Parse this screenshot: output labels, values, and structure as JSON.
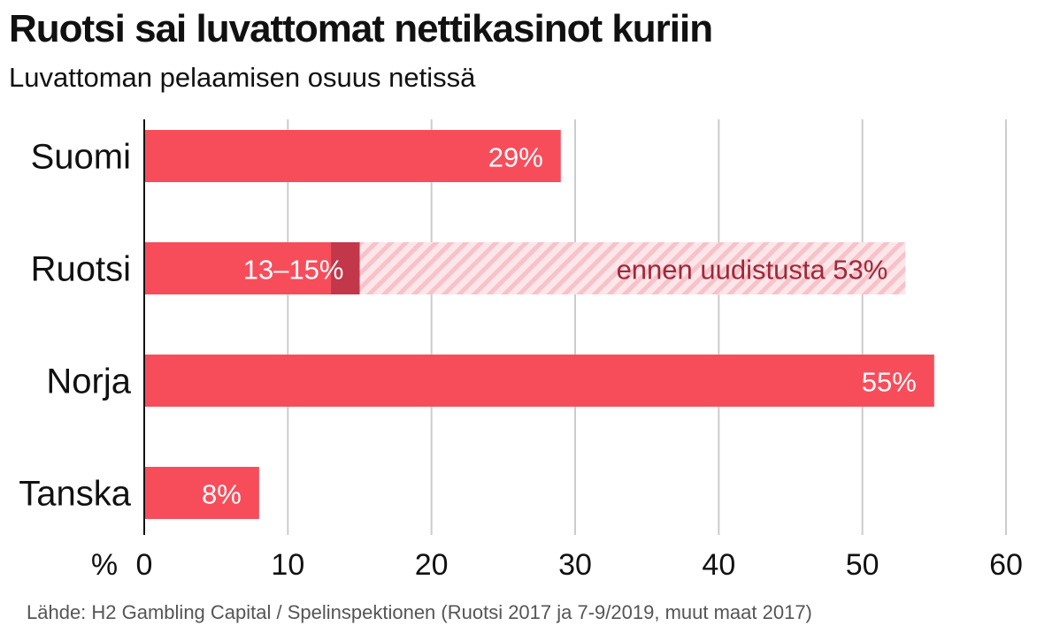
{
  "header": {
    "title": "Ruotsi sai luvattomat nettikasinot kuriin",
    "subtitle": "Luvattoman pelaamisen osuus netissä"
  },
  "footer": {
    "source": "Lähde: H2 Gambling Capital / Spelinspektionen (Ruotsi 2017 ja 7-9/2019, muut maat 2017)"
  },
  "colors": {
    "bar": "#f74d5b",
    "bar_dark": "#c2374a",
    "hatch_bg": "#fde6e9",
    "hatch_line": "#f7c2c9",
    "before_label": "#a0283a",
    "grid": "#cccccc",
    "axis": "#111111"
  },
  "chart_data": {
    "type": "bar",
    "orientation": "horizontal",
    "title": "Ruotsi sai luvattomat nettikasinot kuriin",
    "subtitle": "Luvattoman pelaamisen osuus netissä",
    "xlabel": "%",
    "xlim": [
      0,
      60
    ],
    "xticks": [
      0,
      10,
      20,
      30,
      40,
      50,
      60
    ],
    "grid": "vertical",
    "categories": [
      "Suomi",
      "Ruotsi",
      "Norja",
      "Tanska"
    ],
    "bars": [
      {
        "category": "Suomi",
        "value": 29,
        "label": "29%"
      },
      {
        "category": "Ruotsi",
        "value": 13,
        "range_high": 15,
        "label": "13–15%",
        "before_value": 53,
        "before_label": "ennen uudistusta 53%"
      },
      {
        "category": "Norja",
        "value": 55,
        "label": "55%"
      },
      {
        "category": "Tanska",
        "value": 8,
        "label": "8%"
      }
    ]
  }
}
